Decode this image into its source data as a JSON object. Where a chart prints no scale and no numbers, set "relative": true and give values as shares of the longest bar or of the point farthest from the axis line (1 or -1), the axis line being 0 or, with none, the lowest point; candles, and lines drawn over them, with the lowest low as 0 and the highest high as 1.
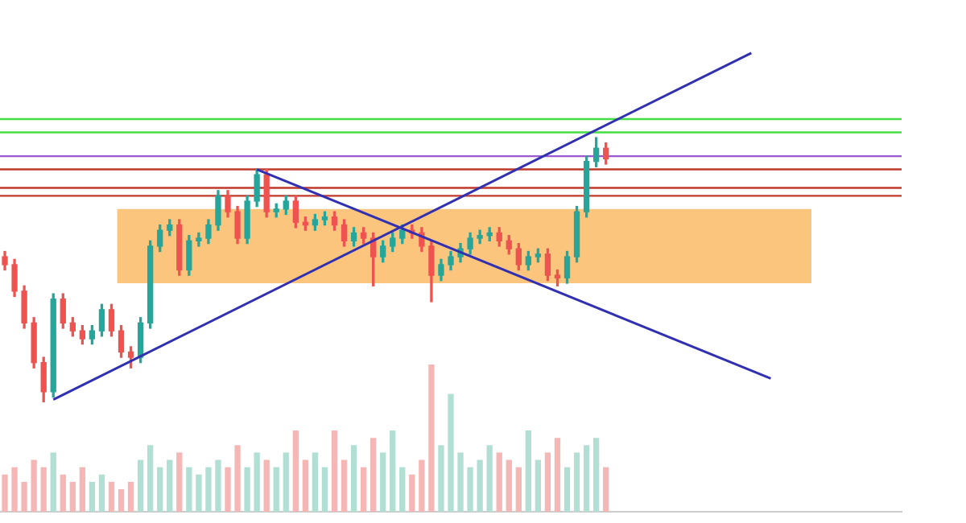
{
  "chart_data": [
    {
      "type": "candlestick",
      "relative": true,
      "grid": false,
      "legend": false,
      "categories": [
        null,
        null,
        null,
        null,
        null,
        null,
        null,
        null,
        null,
        null,
        null,
        null,
        null,
        null,
        null,
        null,
        null,
        null,
        null,
        null,
        null,
        null,
        null,
        null,
        null,
        null,
        null,
        null,
        null,
        null,
        null,
        null,
        null,
        null,
        null,
        null,
        null,
        null,
        null,
        null,
        null,
        null,
        null,
        null,
        null,
        null,
        null,
        null,
        null,
        null,
        null,
        null,
        null,
        null,
        null,
        null,
        null,
        null,
        null,
        null,
        null,
        null,
        null,
        null,
        null,
        null,
        null,
        null,
        null,
        null,
        null,
        null,
        null,
        null,
        null,
        null,
        null,
        null,
        null,
        null,
        null,
        null,
        null,
        null,
        null,
        null,
        null,
        null,
        null,
        null,
        null,
        null,
        null
      ],
      "series": [
        {
          "ohlc": [
            [
              0.55,
              0.57,
              0.5,
              0.52
            ],
            [
              0.52,
              0.54,
              0.4,
              0.42
            ],
            [
              0.42,
              0.44,
              0.28,
              0.3
            ],
            [
              0.3,
              0.32,
              0.13,
              0.15
            ],
            [
              0.15,
              0.17,
              0,
              0.04
            ],
            [
              0.04,
              0.41,
              0.02,
              0.39
            ],
            [
              0.39,
              0.41,
              0.28,
              0.3
            ],
            [
              0.3,
              0.32,
              0.25,
              0.27
            ],
            [
              0.27,
              0.29,
              0.22,
              0.24
            ],
            [
              0.24,
              0.29,
              0.22,
              0.27
            ],
            [
              0.27,
              0.37,
              0.25,
              0.35
            ],
            [
              0.35,
              0.37,
              0.25,
              0.27
            ],
            [
              0.27,
              0.29,
              0.17,
              0.19
            ],
            [
              0.19,
              0.21,
              0.13,
              0.17
            ],
            [
              0.17,
              0.32,
              0.15,
              0.3
            ],
            [
              0.3,
              0.61,
              0.28,
              0.59
            ],
            [
              0.59,
              0.67,
              0.57,
              0.65
            ],
            [
              0.65,
              0.69,
              0.63,
              0.67
            ],
            [
              0.67,
              0.69,
              0.48,
              0.5
            ],
            [
              0.5,
              0.63,
              0.48,
              0.61
            ],
            [
              0.61,
              0.64,
              0.59,
              0.62
            ],
            [
              0.62,
              0.69,
              0.6,
              0.67
            ],
            [
              0.67,
              0.8,
              0.65,
              0.78
            ],
            [
              0.78,
              0.8,
              0.7,
              0.72
            ],
            [
              0.72,
              0.74,
              0.6,
              0.62
            ],
            [
              0.62,
              0.78,
              0.6,
              0.76
            ],
            [
              0.76,
              0.88,
              0.74,
              0.86
            ],
            [
              0.86,
              0.88,
              0.7,
              0.72
            ],
            [
              0.72,
              0.75,
              0.7,
              0.73
            ],
            [
              0.73,
              0.78,
              0.71,
              0.76
            ],
            [
              0.76,
              0.78,
              0.66,
              0.68
            ],
            [
              0.68,
              0.7,
              0.65,
              0.67
            ],
            [
              0.67,
              0.71,
              0.65,
              0.69
            ],
            [
              0.69,
              0.72,
              0.67,
              0.7
            ],
            [
              0.7,
              0.72,
              0.65,
              0.67
            ],
            [
              0.67,
              0.69,
              0.59,
              0.61
            ],
            [
              0.61,
              0.66,
              0.59,
              0.64
            ],
            [
              0.64,
              0.66,
              0.6,
              0.62
            ],
            [
              0.62,
              0.64,
              0.44,
              0.55
            ],
            [
              0.55,
              0.61,
              0.53,
              0.59
            ],
            [
              0.59,
              0.64,
              0.57,
              0.62
            ],
            [
              0.62,
              0.67,
              0.6,
              0.65
            ],
            [
              0.65,
              0.67,
              0.62,
              0.64
            ],
            [
              0.64,
              0.66,
              0.57,
              0.59
            ],
            [
              0.59,
              0.61,
              0.38,
              0.48
            ],
            [
              0.48,
              0.54,
              0.46,
              0.52
            ],
            [
              0.52,
              0.57,
              0.5,
              0.55
            ],
            [
              0.55,
              0.6,
              0.53,
              0.58
            ],
            [
              0.58,
              0.64,
              0.56,
              0.62
            ],
            [
              0.62,
              0.65,
              0.6,
              0.63
            ],
            [
              0.63,
              0.66,
              0.61,
              0.64
            ],
            [
              0.64,
              0.66,
              0.59,
              0.61
            ],
            [
              0.61,
              0.63,
              0.56,
              0.58
            ],
            [
              0.58,
              0.6,
              0.5,
              0.52
            ],
            [
              0.52,
              0.57,
              0.5,
              0.55
            ],
            [
              0.55,
              0.58,
              0.53,
              0.56
            ],
            [
              0.56,
              0.58,
              0.46,
              0.48
            ],
            [
              0.48,
              0.5,
              0.44,
              0.47
            ],
            [
              0.47,
              0.57,
              0.45,
              0.55
            ],
            [
              0.55,
              0.74,
              0.53,
              0.72
            ],
            [
              0.72,
              0.93,
              0.7,
              0.91
            ],
            [
              0.91,
              1,
              0.89,
              0.96
            ],
            [
              0.96,
              0.98,
              0.9,
              0.92
            ],
            null,
            null,
            null,
            null,
            null,
            null,
            null,
            null,
            null,
            null,
            null,
            null,
            null,
            null,
            null,
            null,
            null,
            null,
            null,
            null,
            null,
            null,
            null,
            null,
            null,
            null,
            null,
            null,
            null,
            null
          ],
          "colors": [
            "#ef5350",
            "#ef5350",
            "#ef5350",
            "#ef5350",
            "#ef5350",
            "#26a69a",
            "#ef5350",
            "#ef5350",
            "#ef5350",
            "#26a69a",
            "#26a69a",
            "#ef5350",
            "#ef5350",
            "#ef5350",
            "#26a69a",
            "#26a69a",
            "#26a69a",
            "#26a69a",
            "#ef5350",
            "#26a69a",
            "#26a69a",
            "#26a69a",
            "#26a69a",
            "#ef5350",
            "#ef5350",
            "#26a69a",
            "#26a69a",
            "#ef5350",
            "#26a69a",
            "#26a69a",
            "#ef5350",
            "#ef5350",
            "#26a69a",
            "#26a69a",
            "#ef5350",
            "#ef5350",
            "#26a69a",
            "#ef5350",
            "#ef5350",
            "#26a69a",
            "#26a69a",
            "#26a69a",
            "#ef5350",
            "#ef5350",
            "#ef5350",
            "#26a69a",
            "#26a69a",
            "#26a69a",
            "#26a69a",
            "#26a69a",
            "#26a69a",
            "#ef5350",
            "#ef5350",
            "#ef5350",
            "#26a69a",
            "#26a69a",
            "#ef5350",
            "#ef5350",
            "#26a69a",
            "#26a69a",
            "#26a69a",
            "#26a69a",
            "#ef5350",
            null,
            null,
            null,
            null,
            null,
            null,
            null,
            null,
            null,
            null,
            null,
            null,
            null,
            null,
            null,
            null,
            null,
            null,
            null,
            null,
            null,
            null,
            null,
            null,
            null,
            null,
            null,
            null,
            null,
            null
          ]
        },
        {
          "type": "line",
          "values": [
            null,
            null,
            null,
            null,
            null,
            0.01,
            null,
            null,
            null,
            null,
            null,
            null,
            null,
            null,
            null,
            null,
            null,
            null,
            null,
            null,
            null,
            null,
            null,
            null,
            null,
            null,
            null,
            null,
            null,
            null,
            null,
            null,
            null,
            null,
            null,
            null,
            null,
            null,
            null,
            null,
            null,
            null,
            null,
            null,
            null,
            null,
            null,
            null,
            null,
            null,
            null,
            null,
            null,
            null,
            null,
            null,
            null,
            null,
            null,
            null,
            null,
            null,
            null,
            null,
            null,
            null,
            null,
            null,
            null,
            null,
            null,
            null,
            null,
            null,
            null,
            null,
            null,
            1.32,
            null,
            null,
            null,
            null,
            null,
            null,
            null,
            null,
            null,
            null,
            null,
            null,
            null,
            null,
            null
          ],
          "color": "#3030b0"
        },
        {
          "type": "line",
          "values": [
            null,
            null,
            null,
            null,
            null,
            null,
            null,
            null,
            null,
            null,
            null,
            null,
            null,
            null,
            null,
            null,
            null,
            null,
            null,
            null,
            null,
            null,
            null,
            null,
            null,
            null,
            0.88,
            null,
            null,
            null,
            null,
            null,
            null,
            null,
            null,
            null,
            null,
            null,
            null,
            null,
            null,
            null,
            null,
            null,
            null,
            null,
            null,
            null,
            null,
            null,
            null,
            null,
            null,
            null,
            null,
            null,
            null,
            null,
            null,
            null,
            null,
            null,
            null,
            null,
            null,
            null,
            null,
            null,
            null,
            null,
            null,
            null,
            null,
            null,
            null,
            null,
            null,
            null,
            null,
            0.09,
            null,
            null,
            null,
            null,
            null,
            null,
            null,
            null,
            null,
            null,
            null,
            null,
            null
          ],
          "color": "#3030b0"
        }
      ],
      "ref_lines": [
        {
          "axis": "y",
          "value": 1.07,
          "color": "#44dd44"
        },
        {
          "axis": "y",
          "value": 1.02,
          "color": "#44dd44"
        },
        {
          "axis": "y",
          "value": 0.93,
          "color": "#9b59d0"
        },
        {
          "axis": "y",
          "value": 0.88,
          "color": "#c0392b"
        },
        {
          "axis": "y",
          "value": 0.81,
          "color": "#c0392b"
        },
        {
          "axis": "y",
          "value": 0.78,
          "color": "#c0392b"
        }
      ],
      "bands": [
        {
          "axis": "y",
          "from": 0.45,
          "to": 0.73,
          "color": "#fbc57e"
        }
      ]
    },
    {
      "type": "bar",
      "relative": true,
      "grid": false,
      "legend": false,
      "categories": [
        null,
        null,
        null,
        null,
        null,
        null,
        null,
        null,
        null,
        null,
        null,
        null,
        null,
        null,
        null,
        null,
        null,
        null,
        null,
        null,
        null,
        null,
        null,
        null,
        null,
        null,
        null,
        null,
        null,
        null,
        null,
        null,
        null,
        null,
        null,
        null,
        null,
        null,
        null,
        null,
        null,
        null,
        null,
        null,
        null,
        null,
        null,
        null,
        null,
        null,
        null,
        null,
        null,
        null,
        null,
        null,
        null,
        null,
        null,
        null,
        null,
        null,
        null,
        null,
        null,
        null,
        null,
        null,
        null,
        null,
        null,
        null,
        null,
        null,
        null,
        null,
        null,
        null,
        null,
        null,
        null,
        null,
        null,
        null,
        null,
        null,
        null,
        null,
        null,
        null,
        null,
        null,
        null
      ],
      "values": [
        0.25,
        0.3,
        0.2,
        0.35,
        0.3,
        0.4,
        0.25,
        0.2,
        0.3,
        0.2,
        0.25,
        0.2,
        0.15,
        0.2,
        0.35,
        0.45,
        0.3,
        0.35,
        0.4,
        0.3,
        0.25,
        0.3,
        0.35,
        0.3,
        0.45,
        0.3,
        0.4,
        0.35,
        0.3,
        0.4,
        0.55,
        0.35,
        0.4,
        0.3,
        0.55,
        0.35,
        0.45,
        0.3,
        0.5,
        0.4,
        0.55,
        0.3,
        0.25,
        0.35,
        1,
        0.45,
        0.8,
        0.4,
        0.3,
        0.35,
        0.45,
        0.4,
        0.35,
        0.3,
        0.55,
        0.35,
        0.4,
        0.5,
        0.3,
        0.4,
        0.45,
        0.5,
        0.3,
        null,
        null,
        null,
        null,
        null,
        null,
        null,
        null,
        null,
        null,
        null,
        null,
        null,
        null,
        null,
        null,
        null,
        null,
        null,
        null,
        null,
        null,
        null,
        null,
        null,
        null,
        null,
        null,
        null,
        null
      ],
      "colors": [
        "#f5b7b6",
        "#f5b7b6",
        "#f5b7b6",
        "#f5b7b6",
        "#f5b7b6",
        "#b2dfd3",
        "#f5b7b6",
        "#f5b7b6",
        "#f5b7b6",
        "#b2dfd3",
        "#b2dfd3",
        "#f5b7b6",
        "#f5b7b6",
        "#f5b7b6",
        "#b2dfd3",
        "#b2dfd3",
        "#b2dfd3",
        "#b2dfd3",
        "#f5b7b6",
        "#b2dfd3",
        "#b2dfd3",
        "#b2dfd3",
        "#b2dfd3",
        "#f5b7b6",
        "#f5b7b6",
        "#b2dfd3",
        "#b2dfd3",
        "#f5b7b6",
        "#b2dfd3",
        "#b2dfd3",
        "#f5b7b6",
        "#f5b7b6",
        "#b2dfd3",
        "#b2dfd3",
        "#f5b7b6",
        "#f5b7b6",
        "#b2dfd3",
        "#f5b7b6",
        "#f5b7b6",
        "#b2dfd3",
        "#b2dfd3",
        "#b2dfd3",
        "#f5b7b6",
        "#f5b7b6",
        "#f5b7b6",
        "#b2dfd3",
        "#b2dfd3",
        "#b2dfd3",
        "#b2dfd3",
        "#b2dfd3",
        "#b2dfd3",
        "#f5b7b6",
        "#f5b7b6",
        "#f5b7b6",
        "#b2dfd3",
        "#b2dfd3",
        "#f5b7b6",
        "#f5b7b6",
        "#b2dfd3",
        "#b2dfd3",
        "#b2dfd3",
        "#b2dfd3",
        "#f5b7b6",
        null,
        null,
        null,
        null,
        null,
        null,
        null,
        null,
        null,
        null,
        null,
        null,
        null,
        null,
        null,
        null,
        null,
        null,
        null,
        null,
        null,
        null,
        null,
        null,
        null,
        null,
        null,
        null,
        null,
        null
      ]
    }
  ]
}
